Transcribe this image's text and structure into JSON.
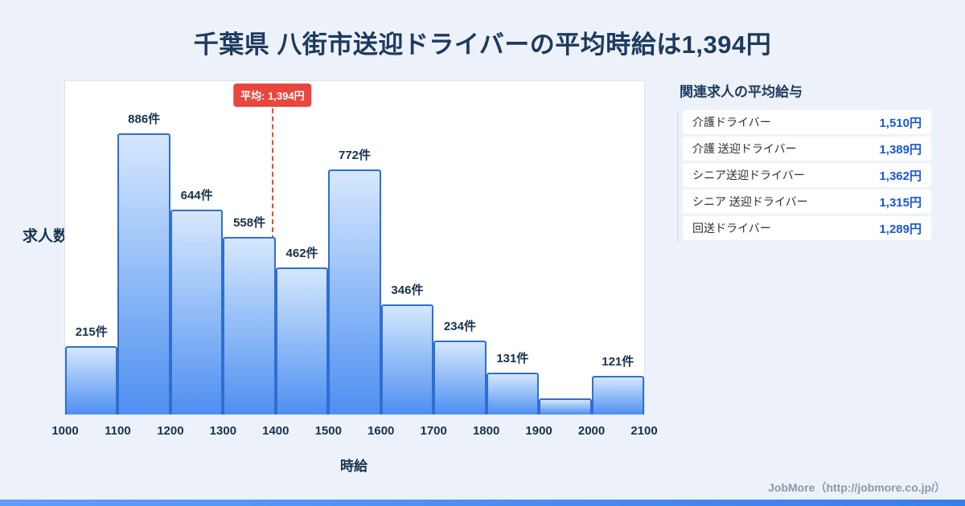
{
  "title": "千葉県 八街市送迎ドライバーの平均時給は1,394円",
  "chart_data": {
    "type": "bar",
    "subtype": "histogram",
    "title": "千葉県 八街市送迎ドライバーの平均時給は1,394円",
    "xlabel": "時給",
    "ylabel": "求人数",
    "x_ticks": [
      1000,
      1100,
      1200,
      1300,
      1400,
      1500,
      1600,
      1700,
      1800,
      1900,
      2000,
      2100
    ],
    "bins": [
      "1000-1100",
      "1100-1200",
      "1200-1300",
      "1300-1400",
      "1400-1500",
      "1500-1600",
      "1600-1700",
      "1700-1800",
      "1800-1900",
      "1900-2000",
      "2000-2100"
    ],
    "values": [
      215,
      886,
      644,
      558,
      462,
      772,
      346,
      234,
      131,
      50,
      121
    ],
    "data_labels": [
      "215件",
      "886件",
      "644件",
      "558件",
      "462件",
      "772件",
      "346件",
      "234件",
      "131件",
      "",
      "121件"
    ],
    "ylim": [
      0,
      1050
    ],
    "grid": false,
    "legend": "none",
    "average": {
      "value": 1394,
      "label": "平均: 1,394円"
    },
    "colors": {
      "bar_fill_top": "#d6e7fd",
      "bar_fill_bottom": "#4f8ff1",
      "bar_border": "#2e6fd2",
      "average_line": "#e8463e",
      "label_text": "#17324f"
    }
  },
  "side_panel": {
    "title": "関連求人の平均給与",
    "items": [
      {
        "name": "介護ドライバー",
        "value": "1,510円"
      },
      {
        "name": "介護 送迎ドライバー",
        "value": "1,389円"
      },
      {
        "name": "シニア送迎ドライバー",
        "value": "1,362円"
      },
      {
        "name": "シニア 送迎ドライバー",
        "value": "1,315円"
      },
      {
        "name": "回送ドライバー",
        "value": "1,289円"
      }
    ],
    "value_color": "#1b57d3"
  },
  "footer": {
    "credit": "JobMore（http://jobmore.co.jp/）"
  },
  "theme": {
    "background": "#edf2fa",
    "title_color": "#1d3a5f",
    "accent_red": "#e8463e",
    "accent_blue": "#3a7ded"
  }
}
